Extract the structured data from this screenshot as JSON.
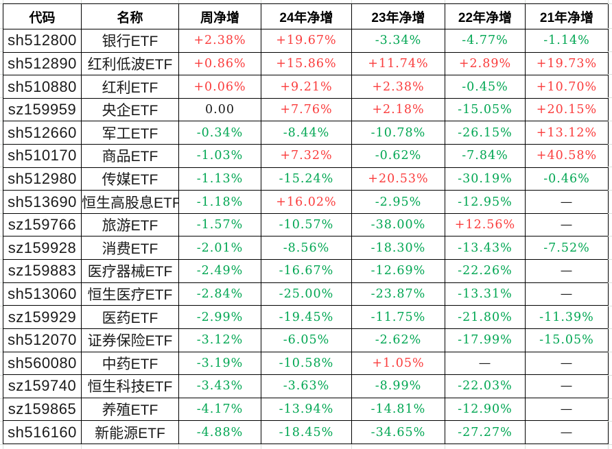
{
  "colors": {
    "positive": "#fa3c3c",
    "negative": "#00a652",
    "neutral": "#1a1a1a",
    "border": "#000000",
    "gridline": "#d9ded9"
  },
  "table": {
    "columns": [
      "代码",
      "名称",
      "周净增",
      "24年净增",
      "23年净增",
      "22年净增",
      "21年净增"
    ],
    "rows": [
      {
        "code": "sh512800",
        "name": "银行ETF",
        "values": [
          {
            "t": "+2.38%",
            "c": "pos"
          },
          {
            "t": "+19.67%",
            "c": "pos"
          },
          {
            "t": "-3.34%",
            "c": "neg"
          },
          {
            "t": "-4.77%",
            "c": "neg"
          },
          {
            "t": "-1.14%",
            "c": "neg"
          }
        ]
      },
      {
        "code": "sh512890",
        "name": "红利低波ETF",
        "values": [
          {
            "t": "+0.86%",
            "c": "pos"
          },
          {
            "t": "+15.86%",
            "c": "pos"
          },
          {
            "t": "+11.74%",
            "c": "pos"
          },
          {
            "t": "+2.89%",
            "c": "pos"
          },
          {
            "t": "+19.73%",
            "c": "pos"
          }
        ]
      },
      {
        "code": "sh510880",
        "name": "红利ETF",
        "values": [
          {
            "t": "+0.06%",
            "c": "pos"
          },
          {
            "t": "+9.21%",
            "c": "pos"
          },
          {
            "t": "+2.38%",
            "c": "pos"
          },
          {
            "t": "-0.45%",
            "c": "neg"
          },
          {
            "t": "+10.70%",
            "c": "pos"
          }
        ]
      },
      {
        "code": "sz159959",
        "name": "央企ETF",
        "values": [
          {
            "t": "0.00",
            "c": "flat"
          },
          {
            "t": "+7.76%",
            "c": "pos"
          },
          {
            "t": "+2.18%",
            "c": "pos"
          },
          {
            "t": "-15.05%",
            "c": "neg"
          },
          {
            "t": "+20.15%",
            "c": "pos"
          }
        ]
      },
      {
        "code": "sh512660",
        "name": "军工ETF",
        "values": [
          {
            "t": "-0.34%",
            "c": "neg"
          },
          {
            "t": "-8.44%",
            "c": "neg"
          },
          {
            "t": "-10.78%",
            "c": "neg"
          },
          {
            "t": "-26.15%",
            "c": "neg"
          },
          {
            "t": "+13.12%",
            "c": "pos"
          }
        ]
      },
      {
        "code": "sh510170",
        "name": "商品ETF",
        "values": [
          {
            "t": "-1.03%",
            "c": "neg"
          },
          {
            "t": "+7.32%",
            "c": "pos"
          },
          {
            "t": "-0.62%",
            "c": "neg"
          },
          {
            "t": "-7.84%",
            "c": "neg"
          },
          {
            "t": "+40.58%",
            "c": "pos"
          }
        ]
      },
      {
        "code": "sh512980",
        "name": "传媒ETF",
        "values": [
          {
            "t": "-1.13%",
            "c": "neg"
          },
          {
            "t": "-15.24%",
            "c": "neg"
          },
          {
            "t": "+20.53%",
            "c": "pos"
          },
          {
            "t": "-30.19%",
            "c": "neg"
          },
          {
            "t": "-0.46%",
            "c": "neg"
          }
        ]
      },
      {
        "code": "sh513690",
        "name": "恒生高股息ETF",
        "values": [
          {
            "t": "-1.18%",
            "c": "neg"
          },
          {
            "t": "+16.02%",
            "c": "pos"
          },
          {
            "t": "-2.95%",
            "c": "neg"
          },
          {
            "t": "-12.95%",
            "c": "neg"
          },
          {
            "t": "—",
            "c": "flat"
          }
        ]
      },
      {
        "code": "sz159766",
        "name": "旅游ETF",
        "values": [
          {
            "t": "-1.57%",
            "c": "neg"
          },
          {
            "t": "-10.57%",
            "c": "neg"
          },
          {
            "t": "-38.00%",
            "c": "neg"
          },
          {
            "t": "+12.56%",
            "c": "pos"
          },
          {
            "t": "—",
            "c": "flat"
          }
        ]
      },
      {
        "code": "sz159928",
        "name": "消费ETF",
        "values": [
          {
            "t": "-2.01%",
            "c": "neg"
          },
          {
            "t": "-8.56%",
            "c": "neg"
          },
          {
            "t": "-18.30%",
            "c": "neg"
          },
          {
            "t": "-13.43%",
            "c": "neg"
          },
          {
            "t": "-7.52%",
            "c": "neg"
          }
        ]
      },
      {
        "code": "sz159883",
        "name": "医疗器械ETF",
        "values": [
          {
            "t": "-2.49%",
            "c": "neg"
          },
          {
            "t": "-16.67%",
            "c": "neg"
          },
          {
            "t": "-12.69%",
            "c": "neg"
          },
          {
            "t": "-22.26%",
            "c": "neg"
          },
          {
            "t": "—",
            "c": "flat"
          }
        ]
      },
      {
        "code": "sh513060",
        "name": "恒生医疗ETF",
        "values": [
          {
            "t": "-2.84%",
            "c": "neg"
          },
          {
            "t": "-25.00%",
            "c": "neg"
          },
          {
            "t": "-23.87%",
            "c": "neg"
          },
          {
            "t": "-13.31%",
            "c": "neg"
          },
          {
            "t": "—",
            "c": "flat"
          }
        ]
      },
      {
        "code": "sz159929",
        "name": "医药ETF",
        "values": [
          {
            "t": "-2.99%",
            "c": "neg"
          },
          {
            "t": "-19.45%",
            "c": "neg"
          },
          {
            "t": "-11.75%",
            "c": "neg"
          },
          {
            "t": "-21.80%",
            "c": "neg"
          },
          {
            "t": "-11.39%",
            "c": "neg"
          }
        ]
      },
      {
        "code": "sh512070",
        "name": "证券保险ETF",
        "values": [
          {
            "t": "-3.12%",
            "c": "neg"
          },
          {
            "t": "-6.05%",
            "c": "neg"
          },
          {
            "t": "-2.62%",
            "c": "neg"
          },
          {
            "t": "-17.99%",
            "c": "neg"
          },
          {
            "t": "-15.05%",
            "c": "neg"
          }
        ]
      },
      {
        "code": "sh560080",
        "name": "中药ETF",
        "values": [
          {
            "t": "-3.19%",
            "c": "neg"
          },
          {
            "t": "-10.58%",
            "c": "neg"
          },
          {
            "t": "+1.05%",
            "c": "pos"
          },
          {
            "t": "—",
            "c": "flat"
          },
          {
            "t": "—",
            "c": "flat"
          }
        ]
      },
      {
        "code": "sz159740",
        "name": "恒生科技ETF",
        "values": [
          {
            "t": "-3.43%",
            "c": "neg"
          },
          {
            "t": "-3.63%",
            "c": "neg"
          },
          {
            "t": "-8.99%",
            "c": "neg"
          },
          {
            "t": "-22.03%",
            "c": "neg"
          },
          {
            "t": "—",
            "c": "flat"
          }
        ]
      },
      {
        "code": "sz159865",
        "name": "养殖ETF",
        "values": [
          {
            "t": "-4.17%",
            "c": "neg"
          },
          {
            "t": "-13.94%",
            "c": "neg"
          },
          {
            "t": "-14.81%",
            "c": "neg"
          },
          {
            "t": "-12.90%",
            "c": "neg"
          },
          {
            "t": "—",
            "c": "flat"
          }
        ]
      },
      {
        "code": "sh516160",
        "name": "新能源ETF",
        "values": [
          {
            "t": "-4.88%",
            "c": "neg"
          },
          {
            "t": "-18.45%",
            "c": "neg"
          },
          {
            "t": "-34.65%",
            "c": "neg"
          },
          {
            "t": "-27.27%",
            "c": "neg"
          },
          {
            "t": "—",
            "c": "flat"
          }
        ]
      }
    ]
  }
}
